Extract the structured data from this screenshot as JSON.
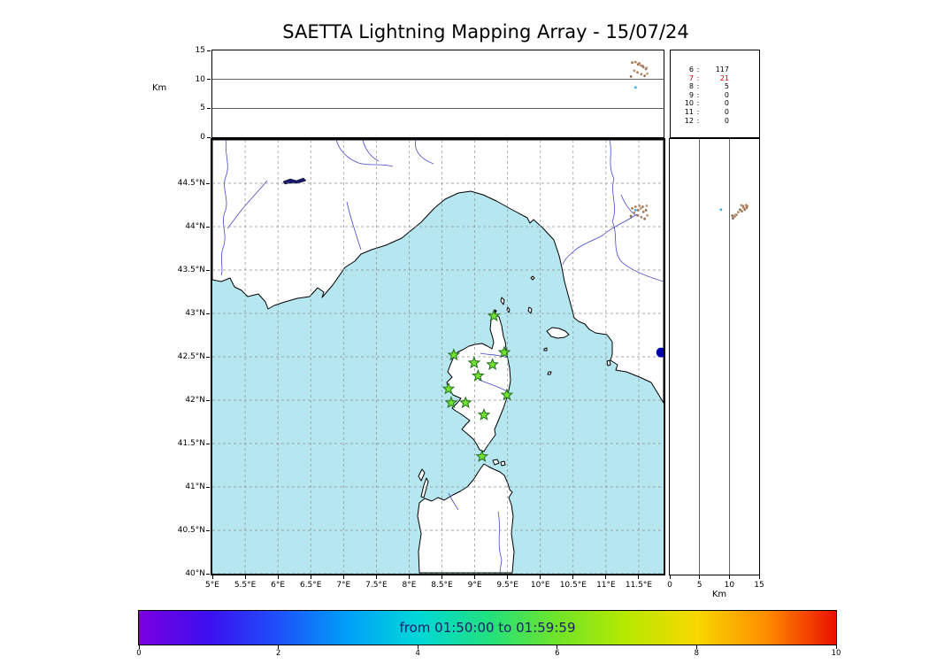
{
  "title": "SAETTA Lightning Mapping Array - 15/07/24",
  "top_panel": {
    "ylabel": "Km"
  },
  "right_panel": {
    "xlabel": "Km"
  },
  "colorbar": {
    "label": "from 01:50:00 to 01:59:59",
    "label_color": "#1d1d6b",
    "tick_labels": [
      "0",
      "2",
      "4",
      "6",
      "8",
      "10"
    ],
    "tick_values": [
      0,
      2,
      4,
      6,
      8,
      10
    ],
    "value_range": [
      0,
      10
    ],
    "gradient": [
      "#7a00e0",
      "#3c0ff0",
      "#1e50fa",
      "#00a0f8",
      "#00d8d8",
      "#20e080",
      "#70e428",
      "#b8e800",
      "#f8d800",
      "#ff8c00",
      "#eb1000"
    ]
  },
  "chart_data": {
    "type": "scatter",
    "title": "SAETTA Lightning Mapping Array - 15/07/24",
    "date": "15/07/24",
    "time_window": "from 01:50:00 to 01:59:59",
    "map": {
      "lon_range_deg_e": [
        5.0,
        11.88
      ],
      "lat_range_deg_n": [
        40.0,
        45.0
      ],
      "grid": "dashed",
      "sea_color": "#b6e7f1",
      "land_color": "#ffffff",
      "coast_color": "#000000",
      "river_color": "#4646cf",
      "grid_color": "#8f8f8f",
      "lat_ticks": [
        {
          "label": "44.5°N",
          "value": 44.5
        },
        {
          "label": "44°N",
          "value": 44.0
        },
        {
          "label": "43.5°N",
          "value": 43.5
        },
        {
          "label": "43°N",
          "value": 43.0
        },
        {
          "label": "42.5°N",
          "value": 42.5
        },
        {
          "label": "42°N",
          "value": 42.0
        },
        {
          "label": "41.5°N",
          "value": 41.5
        },
        {
          "label": "41°N",
          "value": 41.0
        },
        {
          "label": "40.5°N",
          "value": 40.5
        },
        {
          "label": "40°N",
          "value": 40.0
        }
      ],
      "lon_ticks": [
        {
          "label": "5°E",
          "value": 5.0
        },
        {
          "label": "5.5°E",
          "value": 5.5
        },
        {
          "label": "6°E",
          "value": 6.0
        },
        {
          "label": "6.5°E",
          "value": 6.5
        },
        {
          "label": "7°E",
          "value": 7.0
        },
        {
          "label": "7.5°E",
          "value": 7.5
        },
        {
          "label": "8°E",
          "value": 8.0
        },
        {
          "label": "8.5°E",
          "value": 8.5
        },
        {
          "label": "9°E",
          "value": 9.0
        },
        {
          "label": "9.5°E",
          "value": 9.5
        },
        {
          "label": "10°E",
          "value": 10.0
        },
        {
          "label": "10.5°E",
          "value": 10.5
        },
        {
          "label": "11°E",
          "value": 11.0
        },
        {
          "label": "11.5°E",
          "value": 11.5
        }
      ],
      "lake_marker": {
        "lon": 11.84,
        "lat": 42.55,
        "color": "#0000b2"
      }
    },
    "altitude_axis": {
      "ticks_km": [
        0,
        5,
        10,
        15
      ],
      "range_km": [
        0,
        15
      ],
      "inner_lines_km": [
        5,
        10
      ]
    },
    "stations": {
      "marker": "star",
      "fill_color": "#73e22f",
      "edge_color": "#1f6e1f",
      "points": [
        {
          "lon": 9.29,
          "lat": 42.97
        },
        {
          "lon": 8.68,
          "lat": 42.52
        },
        {
          "lon": 8.99,
          "lat": 42.43
        },
        {
          "lon": 9.27,
          "lat": 42.41
        },
        {
          "lon": 9.45,
          "lat": 42.55
        },
        {
          "lon": 9.05,
          "lat": 42.28
        },
        {
          "lon": 8.6,
          "lat": 42.13
        },
        {
          "lon": 8.64,
          "lat": 41.97
        },
        {
          "lon": 8.86,
          "lat": 41.97
        },
        {
          "lon": 9.49,
          "lat": 42.06
        },
        {
          "lon": 9.14,
          "lat": 41.83
        },
        {
          "lon": 9.11,
          "lat": 41.35
        }
      ]
    },
    "events": [
      {
        "lon": 11.4,
        "lat": 44.21,
        "alt_km": 12.9,
        "color": "#a5794e"
      },
      {
        "lon": 11.45,
        "lat": 44.23,
        "alt_km": 13.0,
        "color": "#b08055"
      },
      {
        "lon": 11.49,
        "lat": 44.19,
        "alt_km": 12.6,
        "color": "#9b7050"
      },
      {
        "lon": 11.53,
        "lat": 44.21,
        "alt_km": 12.4,
        "color": "#c29067"
      },
      {
        "lon": 11.57,
        "lat": 44.17,
        "alt_km": 12.1,
        "color": "#a87d5a"
      },
      {
        "lon": 11.61,
        "lat": 44.19,
        "alt_km": 11.8,
        "color": "#8d6f58"
      },
      {
        "lon": 11.43,
        "lat": 44.16,
        "alt_km": 11.5,
        "color": "#b58a60"
      },
      {
        "lon": 11.48,
        "lat": 44.13,
        "alt_km": 11.2,
        "color": "#9e7a5e"
      },
      {
        "lon": 11.54,
        "lat": 44.11,
        "alt_km": 10.9,
        "color": "#ae8262"
      },
      {
        "lon": 11.59,
        "lat": 44.09,
        "alt_km": 10.6,
        "color": "#937257"
      },
      {
        "lon": 11.63,
        "lat": 44.13,
        "alt_km": 11.0,
        "color": "#c49a6e"
      },
      {
        "lon": 11.38,
        "lat": 44.12,
        "alt_km": 10.5,
        "color": "#8a6a50"
      },
      {
        "lon": 11.51,
        "lat": 44.24,
        "alt_km": 12.8,
        "color": "#b9895f"
      },
      {
        "lon": 11.56,
        "lat": 44.23,
        "alt_km": 12.3,
        "color": "#a07656"
      },
      {
        "lon": 11.62,
        "lat": 44.24,
        "alt_km": 12.0,
        "color": "#bb9977"
      },
      {
        "lon": 11.45,
        "lat": 44.19,
        "alt_km": 8.6,
        "color": "#2ab2e8"
      }
    ],
    "counts": [
      {
        "label": "6",
        "value": "117",
        "color": "#000000"
      },
      {
        "label": "7",
        "value": "21",
        "color": "#dd0000"
      },
      {
        "label": "8",
        "value": "5",
        "color": "#000000"
      },
      {
        "label": "9",
        "value": "0",
        "color": "#000000"
      },
      {
        "label": "10",
        "value": "0",
        "color": "#000000"
      },
      {
        "label": "11",
        "value": "0",
        "color": "#000000"
      },
      {
        "label": "12",
        "value": "0",
        "color": "#000000"
      }
    ]
  }
}
